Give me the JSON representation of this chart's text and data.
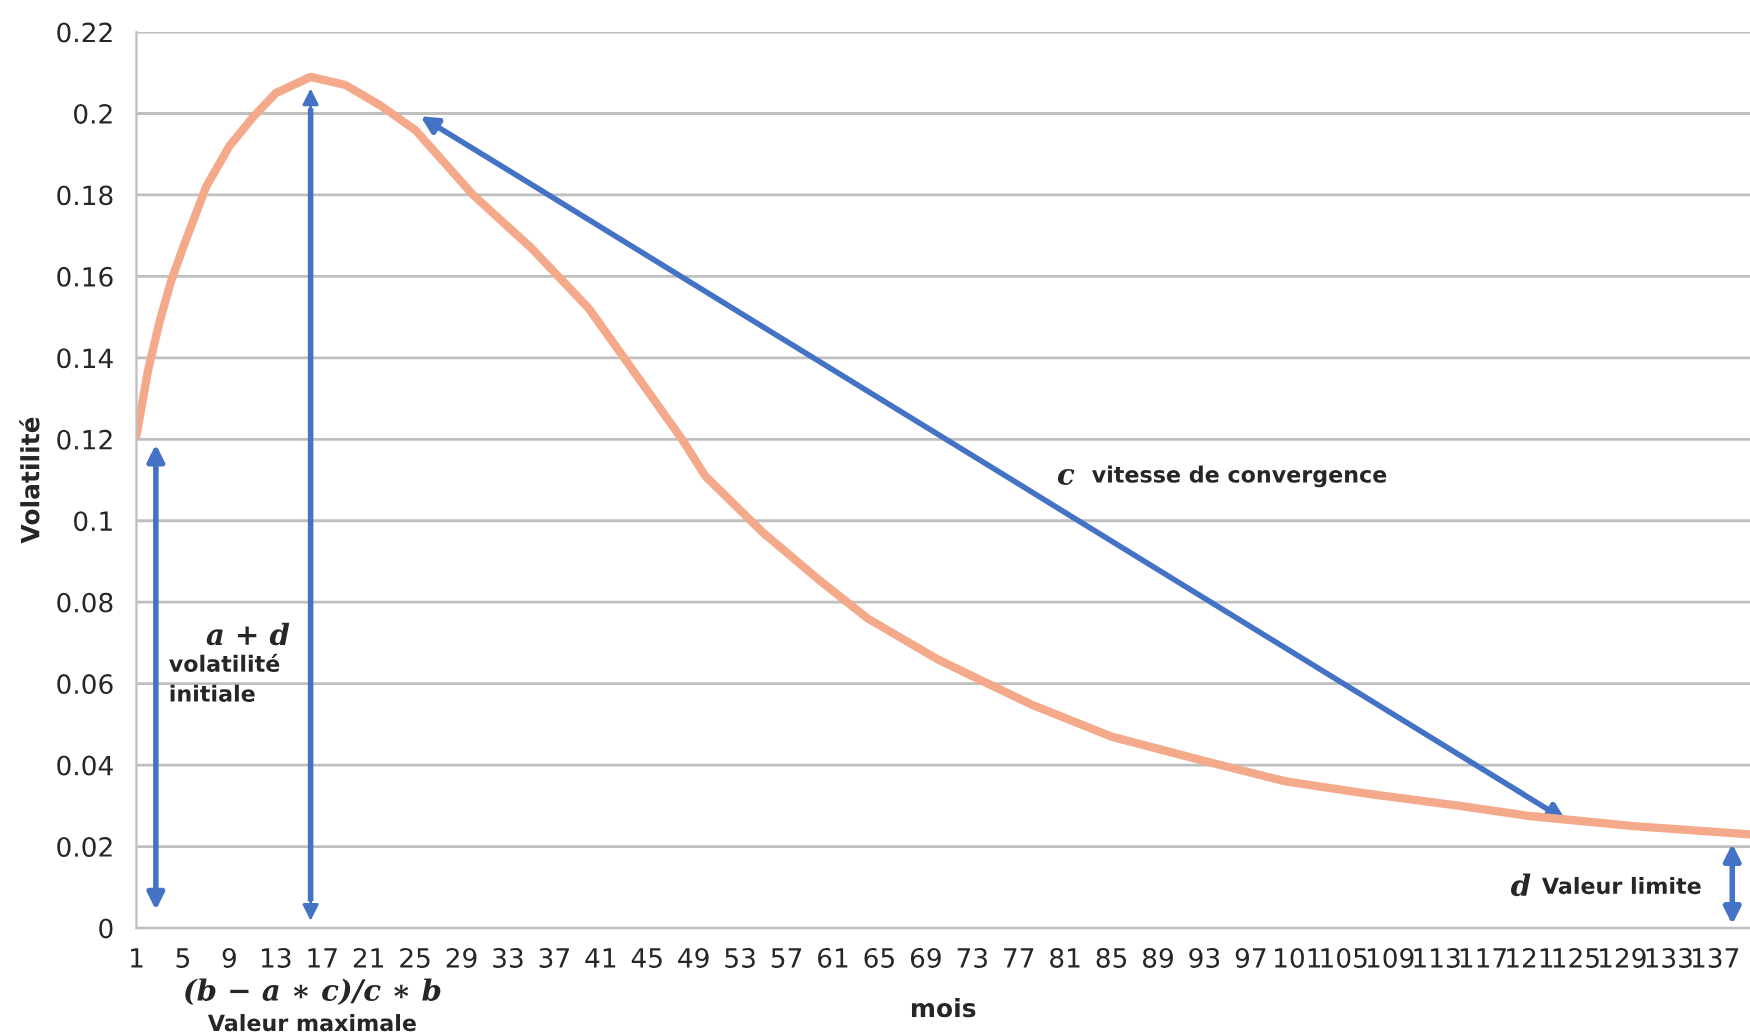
{
  "chart_data": {
    "type": "line",
    "xlabel": "mois",
    "ylabel": "Volatilité",
    "x": [
      1,
      2,
      3,
      4,
      5,
      7,
      9,
      11,
      13,
      16,
      19,
      22,
      25,
      30,
      35,
      40,
      45,
      48,
      50,
      55,
      60,
      64,
      70,
      78,
      85,
      93,
      100,
      107,
      115,
      121,
      130,
      140
    ],
    "series": [
      {
        "color": "#f4a98a",
        "values": [
          0.121,
          0.137,
          0.149,
          0.159,
          0.167,
          0.182,
          0.192,
          0.199,
          0.205,
          0.209,
          0.207,
          0.202,
          0.196,
          0.18,
          0.167,
          0.152,
          0.132,
          0.12,
          0.111,
          0.097,
          0.085,
          0.076,
          0.066,
          0.055,
          0.047,
          0.041,
          0.036,
          0.033,
          0.03,
          0.0275,
          0.025,
          0.023
        ]
      }
    ],
    "xlim": [
      1,
      140
    ],
    "xticks": [
      1,
      5,
      9,
      13,
      17,
      21,
      25,
      29,
      33,
      37,
      41,
      45,
      49,
      53,
      57,
      61,
      65,
      69,
      73,
      77,
      81,
      85,
      89,
      93,
      97,
      101,
      105,
      109,
      113,
      117,
      121,
      125,
      129,
      133,
      137
    ],
    "ylim": [
      0,
      0.22
    ],
    "yticks": [
      0,
      0.02,
      0.04,
      0.06,
      0.08,
      0.1,
      0.12,
      0.14,
      0.16,
      0.18,
      0.2,
      0.22
    ],
    "ref_lines": [
      {
        "axis": "x",
        "value": 16,
        "color": "#4472c4"
      }
    ],
    "grid": "y",
    "legend": false,
    "marker": "none",
    "line_style": "solid",
    "annotations": [
      "a + d",
      "volatilité\ninitiale",
      "(b − a ∗ c)/c ∗ b",
      "Valeur maximale",
      "c",
      "vitesse de convergence",
      "d",
      "Valeur limite"
    ]
  }
}
